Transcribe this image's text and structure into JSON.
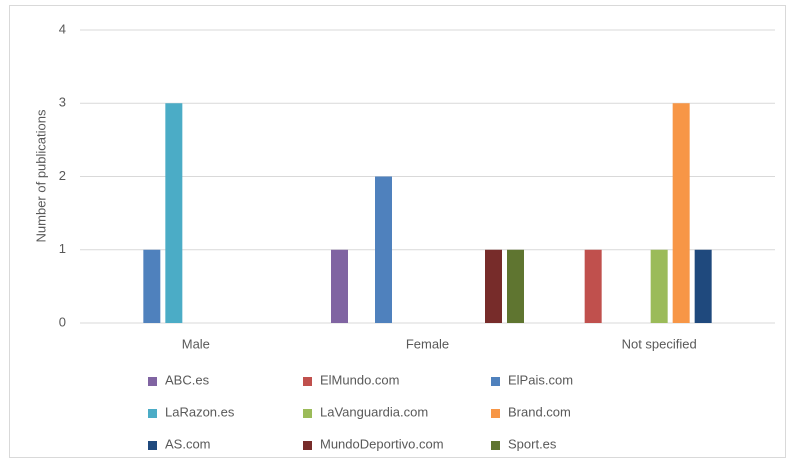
{
  "chart_data": {
    "type": "bar",
    "y_axis_label": "Number of publications",
    "categories": [
      "Male",
      "Female",
      "Not specified"
    ],
    "series": [
      {
        "name": "ABC.es",
        "color": "#8064a2",
        "values": [
          0,
          1,
          0
        ]
      },
      {
        "name": "ElMundo.com",
        "color": "#c0504d",
        "values": [
          0,
          0,
          1
        ]
      },
      {
        "name": "ElPais.com",
        "color": "#4f81bd",
        "values": [
          1,
          2,
          0
        ]
      },
      {
        "name": "LaRazon.es",
        "color": "#4bacc6",
        "values": [
          3,
          0,
          0
        ]
      },
      {
        "name": "LaVanguardia.com",
        "color": "#9bbb59",
        "values": [
          0,
          0,
          1
        ]
      },
      {
        "name": "Brand.com",
        "color": "#f79646",
        "values": [
          0,
          0,
          3
        ]
      },
      {
        "name": "AS.com",
        "color": "#1f497d",
        "values": [
          0,
          0,
          1
        ]
      },
      {
        "name": "MundoDeportivo.com",
        "color": "#772c2a",
        "values": [
          0,
          1,
          0
        ]
      },
      {
        "name": "Sport.es",
        "color": "#5f7530",
        "values": [
          0,
          1,
          0
        ]
      }
    ],
    "ylim": [
      0,
      4
    ],
    "yticks": [
      0,
      1,
      2,
      3,
      4
    ],
    "grid": true,
    "legend": "bottom"
  }
}
